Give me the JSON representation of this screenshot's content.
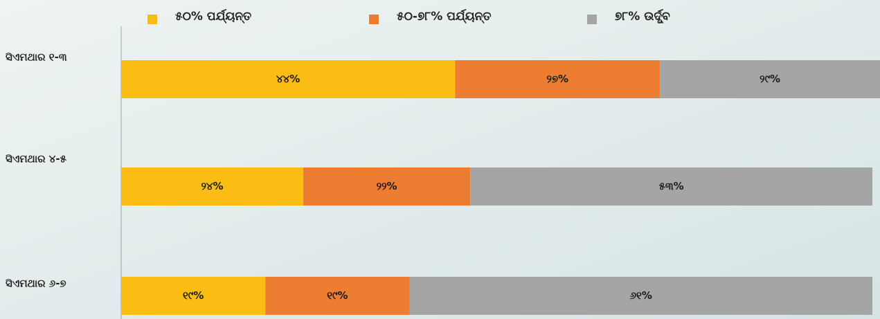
{
  "chart_data": {
    "type": "stacked-bar-horizontal",
    "categories": [
      "ସିଏମଥାର ୧-୩",
      "ସିଏମଥାର ୪-୫",
      "ସିଏମଥାର ୬-୭"
    ],
    "xlim": [
      0,
      100
    ],
    "legend": "top",
    "series": [
      {
        "name": "୫୦% ପର୍ଯ୍ୟନ୍ତ",
        "color": "#fbbd13",
        "values": [
          44,
          24,
          19
        ],
        "value_labels": [
          "୪୪%",
          "୨୪%",
          "୧୯%"
        ]
      },
      {
        "name": "୫୦-୭୮% ପର୍ଯ୍ୟନ୍ତ",
        "color": "#ed7d31",
        "values": [
          27,
          22,
          19
        ],
        "value_labels": [
          "୨୭%",
          "୨୨%",
          "୧୯%"
        ]
      },
      {
        "name": "୭୮% ଉର୍ଦ୍ଧ୍ବ",
        "color": "#a5a5a5",
        "values": [
          29,
          53,
          61
        ],
        "value_labels": [
          "୨୯%",
          "୫୩%",
          "୬୧%"
        ]
      }
    ]
  }
}
